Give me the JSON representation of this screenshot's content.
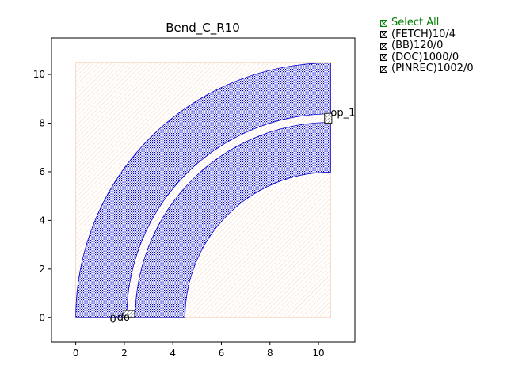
{
  "chart_data": {
    "type": "layout",
    "title": "Bend_C_R10",
    "xlim": [
      -1,
      11.5
    ],
    "ylim": [
      -1,
      11.5
    ],
    "xticks": [
      "0",
      "2",
      "4",
      "6",
      "8",
      "10"
    ],
    "yticks": [
      "0",
      "2",
      "4",
      "6",
      "8",
      "10"
    ],
    "xtick_values": [
      0,
      2,
      4,
      6,
      8,
      10
    ],
    "ytick_values": [
      0,
      2,
      4,
      6,
      8,
      10
    ],
    "bbox_rect": {
      "x0": 0,
      "y0": 0,
      "x1": 10.5,
      "y1": 10.5,
      "color": "#f4c7a8"
    },
    "arcs": [
      {
        "center": [
          10.5,
          0
        ],
        "r_outer": 10.5,
        "r_inner": 8.4,
        "color": "#0000cc"
      },
      {
        "center": [
          10.5,
          0
        ],
        "r_outer": 8.05,
        "r_inner": 6.0,
        "color": "#0000cc"
      }
    ],
    "ports": [
      {
        "name": "op_1",
        "center": [
          10.4,
          8.2
        ],
        "w": 0.3,
        "h": 0.4
      },
      {
        "name": "do",
        "center": [
          2.2,
          0.15
        ],
        "w": 0.45,
        "h": 0.3
      }
    ],
    "annotations": [
      {
        "text": "0",
        "at": [
          1.4,
          -0.2
        ]
      },
      {
        "text": "op_1",
        "at": [
          10.5,
          8.3
        ]
      },
      {
        "text": "do",
        "at": [
          1.7,
          -0.12
        ]
      }
    ]
  },
  "legend": {
    "items": [
      {
        "label": "Select All",
        "color": "#008000"
      },
      {
        "label": "(FETCH)10/4",
        "color": "#000000"
      },
      {
        "label": "(BB)120/0",
        "color": "#000000"
      },
      {
        "label": "(DOC)1000/0",
        "color": "#000000"
      },
      {
        "label": "(PINREC)1002/0",
        "color": "#000000"
      }
    ]
  }
}
